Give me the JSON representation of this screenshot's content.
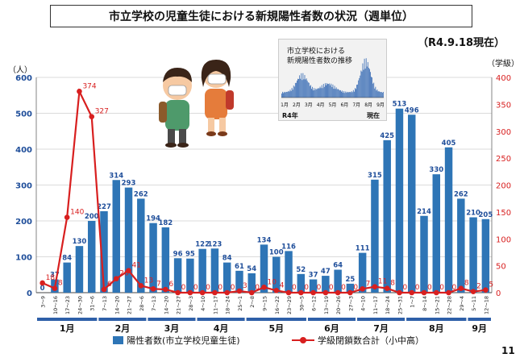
{
  "header": {
    "title": "市立学校の児童生徒における新規陽性者数の状況（週単位）",
    "as_of": "（R4.9.18現在）",
    "page_number": "11"
  },
  "inset": {
    "title_line1": "市立学校における",
    "title_line2": "新規陽性者数の推移",
    "months": [
      "1月",
      "2月",
      "3月",
      "4月",
      "5月",
      "6月",
      "7月",
      "8月",
      "9月"
    ],
    "year_label": "R4年",
    "now_label": "現在"
  },
  "chart_data": {
    "type": "bar",
    "left_axis_unit": "（人）",
    "right_axis_unit": "（学級）",
    "left_ylim": [
      0,
      600
    ],
    "left_ticks": [
      0,
      100,
      200,
      300,
      400,
      500,
      600
    ],
    "right_ylim": [
      0,
      400
    ],
    "right_ticks": [
      0,
      50,
      100,
      150,
      200,
      250,
      300,
      350,
      400
    ],
    "categories": [
      "3～9",
      "10～16",
      "17～23",
      "24～30",
      "31～6",
      "7～13",
      "14～20",
      "21～27",
      "28～6",
      "7～13",
      "14～20",
      "21～27",
      "28～3",
      "4～10",
      "11～17",
      "18～24",
      "25～1",
      "2～8",
      "9～15",
      "16～22",
      "23～29",
      "30～5",
      "6～12",
      "13～19",
      "20～26",
      "27～3",
      "4～10",
      "11～17",
      "18～24",
      "25～31",
      "1～7",
      "8～14",
      "15～21",
      "22～28",
      "29～4",
      "5～11",
      "12～18"
    ],
    "months": [
      {
        "label": "1月",
        "start": 0,
        "end": 4
      },
      {
        "label": "2月",
        "start": 5,
        "end": 8
      },
      {
        "label": "3月",
        "start": 9,
        "end": 12
      },
      {
        "label": "4月",
        "start": 13,
        "end": 16
      },
      {
        "label": "5月",
        "start": 17,
        "end": 21
      },
      {
        "label": "6月",
        "start": 22,
        "end": 25
      },
      {
        "label": "7月",
        "start": 26,
        "end": 29
      },
      {
        "label": "8月",
        "start": 30,
        "end": 34
      },
      {
        "label": "9月",
        "start": 35,
        "end": 36
      }
    ],
    "series": [
      {
        "name": "陽性者数(市立学校児童生徒)",
        "type": "bar",
        "axis": "left",
        "color": "#2E75B6",
        "values": [
          0,
          37,
          84,
          130,
          200,
          227,
          314,
          293,
          262,
          194,
          182,
          96,
          95,
          122,
          123,
          84,
          61,
          54,
          134,
          100,
          116,
          52,
          37,
          47,
          64,
          25,
          111,
          315,
          425,
          513,
          496,
          214,
          330,
          405,
          262,
          210,
          205
        ]
      },
      {
        "name": "学級閉鎖数合計（小中高）",
        "type": "line",
        "axis": "right",
        "color": "#D81F1F",
        "values": [
          18,
          8,
          140,
          374,
          327,
          6,
          26,
          41,
          13,
          7,
          6,
          0,
          0,
          0,
          0,
          0,
          3,
          0,
          10,
          4,
          0,
          0,
          0,
          0,
          0,
          0,
          7,
          11,
          8,
          0,
          0,
          0,
          0,
          0,
          8,
          2,
          5
        ],
        "labels": [
          "18",
          "8",
          "140",
          "374",
          "327",
          "6",
          "26",
          "41",
          "13",
          "7",
          "6",
          "0",
          "0",
          "0",
          "0",
          "0",
          "3",
          "0",
          "10",
          "4",
          "0",
          "0",
          "0",
          "0",
          "0",
          "0",
          "7",
          "11",
          "8",
          "0",
          "0",
          "0",
          "0",
          "0",
          "8",
          "2",
          "5"
        ]
      }
    ]
  }
}
